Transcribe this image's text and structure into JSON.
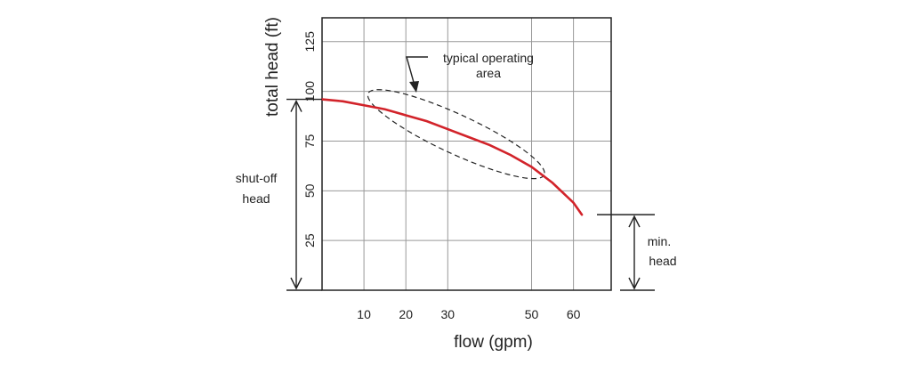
{
  "chart_data": {
    "type": "line",
    "title": "",
    "xlabel": "flow (gpm)",
    "ylabel": "total head (ft)",
    "xlim": [
      0,
      69
    ],
    "ylim": [
      0,
      137
    ],
    "x_ticks": [
      10,
      20,
      30,
      50,
      60
    ],
    "y_ticks": [
      25,
      50,
      75,
      100,
      125
    ],
    "grid": true,
    "series": [
      {
        "color": "#d2232a",
        "x": [
          0,
          5,
          10,
          15,
          20,
          25,
          30,
          35,
          40,
          45,
          50,
          55,
          60,
          62
        ],
        "y": [
          96,
          95,
          93,
          91,
          88,
          85,
          81,
          77,
          73,
          68,
          62,
          54,
          44,
          38
        ]
      }
    ],
    "annotations": {
      "operating_area": {
        "label_line1": "typical operating",
        "label_line2": "area",
        "ellipse_x": [
          11,
          53
        ],
        "ellipse_y": [
          58,
          99
        ]
      },
      "shutoff_head": {
        "label_line1": "shut-off",
        "label_line2": "head",
        "value": 96
      },
      "min_head": {
        "label_line1": "min.",
        "label_line2": "head",
        "value": 38
      }
    }
  }
}
